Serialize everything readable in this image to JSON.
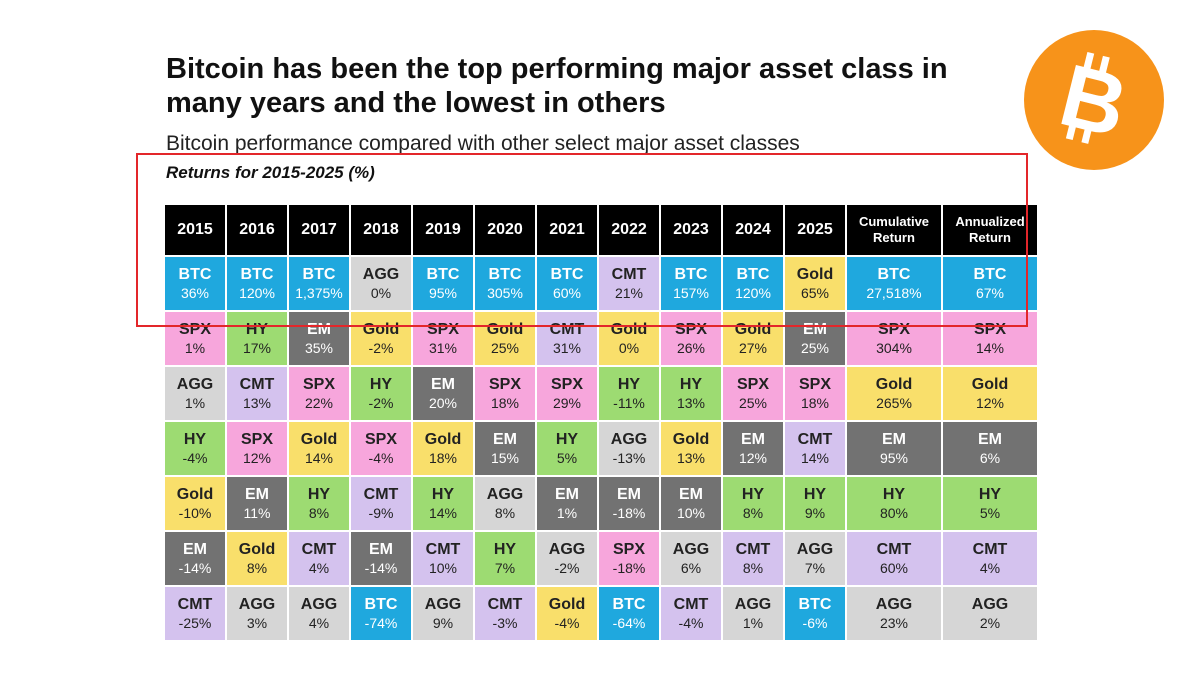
{
  "title": "Bitcoin has been the top performing major asset class in many years and the lowest in others",
  "subtitle": "Bitcoin performance compared with other select major asset classes",
  "range_label": "Returns for 2015-2025 (%)",
  "logo": {
    "icon": "bitcoin-logo-icon",
    "color": "#f7931a"
  },
  "colors": {
    "BTC": "#1fa8de",
    "SPX": "#f7a6dc",
    "AGG": "#d6d6d6",
    "HY": "#9ddb72",
    "CMT": "#d4c2ee",
    "EM": "#727272",
    "Gold": "#f9df6b",
    "highlight": "#e3262a"
  },
  "chart_data": {
    "type": "table",
    "columns": [
      "2015",
      "2016",
      "2017",
      "2018",
      "2019",
      "2020",
      "2021",
      "2022",
      "2023",
      "2024",
      "2025",
      "Cumulative Return",
      "Annualized Return"
    ],
    "ranks": [
      [
        [
          "BTC",
          "36%"
        ],
        [
          "BTC",
          "120%"
        ],
        [
          "BTC",
          "1,375%"
        ],
        [
          "AGG",
          "0%"
        ],
        [
          "BTC",
          "95%"
        ],
        [
          "BTC",
          "305%"
        ],
        [
          "BTC",
          "60%"
        ],
        [
          "CMT",
          "21%"
        ],
        [
          "BTC",
          "157%"
        ],
        [
          "BTC",
          "120%"
        ],
        [
          "Gold",
          "65%"
        ],
        [
          "BTC",
          "27,518%"
        ],
        [
          "BTC",
          "67%"
        ]
      ],
      [
        [
          "SPX",
          "1%"
        ],
        [
          "HY",
          "17%"
        ],
        [
          "EM",
          "35%"
        ],
        [
          "Gold",
          "-2%"
        ],
        [
          "SPX",
          "31%"
        ],
        [
          "Gold",
          "25%"
        ],
        [
          "CMT",
          "31%"
        ],
        [
          "Gold",
          "0%"
        ],
        [
          "SPX",
          "26%"
        ],
        [
          "Gold",
          "27%"
        ],
        [
          "EM",
          "25%"
        ],
        [
          "SPX",
          "304%"
        ],
        [
          "SPX",
          "14%"
        ]
      ],
      [
        [
          "AGG",
          "1%"
        ],
        [
          "CMT",
          "13%"
        ],
        [
          "SPX",
          "22%"
        ],
        [
          "HY",
          "-2%"
        ],
        [
          "EM",
          "20%"
        ],
        [
          "SPX",
          "18%"
        ],
        [
          "SPX",
          "29%"
        ],
        [
          "HY",
          "-11%"
        ],
        [
          "HY",
          "13%"
        ],
        [
          "SPX",
          "25%"
        ],
        [
          "SPX",
          "18%"
        ],
        [
          "Gold",
          "265%"
        ],
        [
          "Gold",
          "12%"
        ]
      ],
      [
        [
          "HY",
          "-4%"
        ],
        [
          "SPX",
          "12%"
        ],
        [
          "Gold",
          "14%"
        ],
        [
          "SPX",
          "-4%"
        ],
        [
          "Gold",
          "18%"
        ],
        [
          "EM",
          "15%"
        ],
        [
          "HY",
          "5%"
        ],
        [
          "AGG",
          "-13%"
        ],
        [
          "Gold",
          "13%"
        ],
        [
          "EM",
          "12%"
        ],
        [
          "CMT",
          "14%"
        ],
        [
          "EM",
          "95%"
        ],
        [
          "EM",
          "6%"
        ]
      ],
      [
        [
          "Gold",
          "-10%"
        ],
        [
          "EM",
          "11%"
        ],
        [
          "HY",
          "8%"
        ],
        [
          "CMT",
          "-9%"
        ],
        [
          "HY",
          "14%"
        ],
        [
          "AGG",
          "8%"
        ],
        [
          "EM",
          "1%"
        ],
        [
          "EM",
          "-18%"
        ],
        [
          "EM",
          "10%"
        ],
        [
          "HY",
          "8%"
        ],
        [
          "HY",
          "9%"
        ],
        [
          "HY",
          "80%"
        ],
        [
          "HY",
          "5%"
        ]
      ],
      [
        [
          "EM",
          "-14%"
        ],
        [
          "Gold",
          "8%"
        ],
        [
          "CMT",
          "4%"
        ],
        [
          "EM",
          "-14%"
        ],
        [
          "CMT",
          "10%"
        ],
        [
          "HY",
          "7%"
        ],
        [
          "AGG",
          "-2%"
        ],
        [
          "SPX",
          "-18%"
        ],
        [
          "AGG",
          "6%"
        ],
        [
          "CMT",
          "8%"
        ],
        [
          "AGG",
          "7%"
        ],
        [
          "CMT",
          "60%"
        ],
        [
          "CMT",
          "4%"
        ]
      ],
      [
        [
          "CMT",
          "-25%"
        ],
        [
          "AGG",
          "3%"
        ],
        [
          "AGG",
          "4%"
        ],
        [
          "BTC",
          "-74%"
        ],
        [
          "AGG",
          "9%"
        ],
        [
          "CMT",
          "-3%"
        ],
        [
          "Gold",
          "-4%"
        ],
        [
          "BTC",
          "-64%"
        ],
        [
          "CMT",
          "-4%"
        ],
        [
          "AGG",
          "1%"
        ],
        [
          "BTC",
          "-6%"
        ],
        [
          "AGG",
          "23%"
        ],
        [
          "AGG",
          "2%"
        ]
      ]
    ]
  }
}
